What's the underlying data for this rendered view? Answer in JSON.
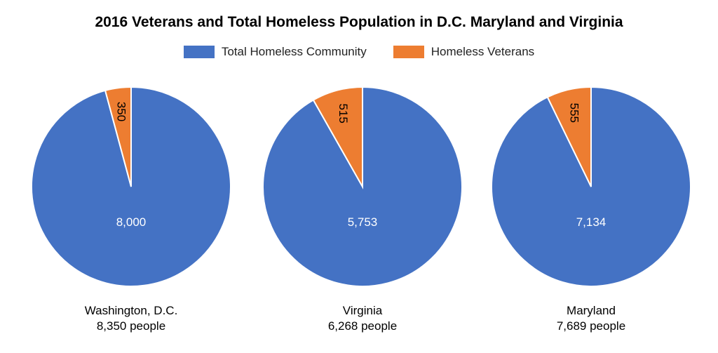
{
  "chart_data": {
    "type": "pie",
    "title": "2016 Veterans and Total Homeless Population in D.C. Maryland and Virginia",
    "legend": [
      {
        "name": "Total Homeless Community",
        "color": "#4472C4"
      },
      {
        "name": "Homeless Veterans",
        "color": "#ED7D31"
      }
    ],
    "legend_position": "top",
    "pies": [
      {
        "name": "Washington, D.C.",
        "total_label": "8,350 people",
        "values": [
          8000,
          350
        ],
        "labels": [
          "8,000",
          "350"
        ]
      },
      {
        "name": "Virginia",
        "total_label": "6,268 people",
        "values": [
          5753,
          515
        ],
        "labels": [
          "5,753",
          "515"
        ]
      },
      {
        "name": "Maryland",
        "total_label": "7,689 people",
        "values": [
          7134,
          555
        ],
        "labels": [
          "7,134",
          "555"
        ]
      }
    ]
  }
}
